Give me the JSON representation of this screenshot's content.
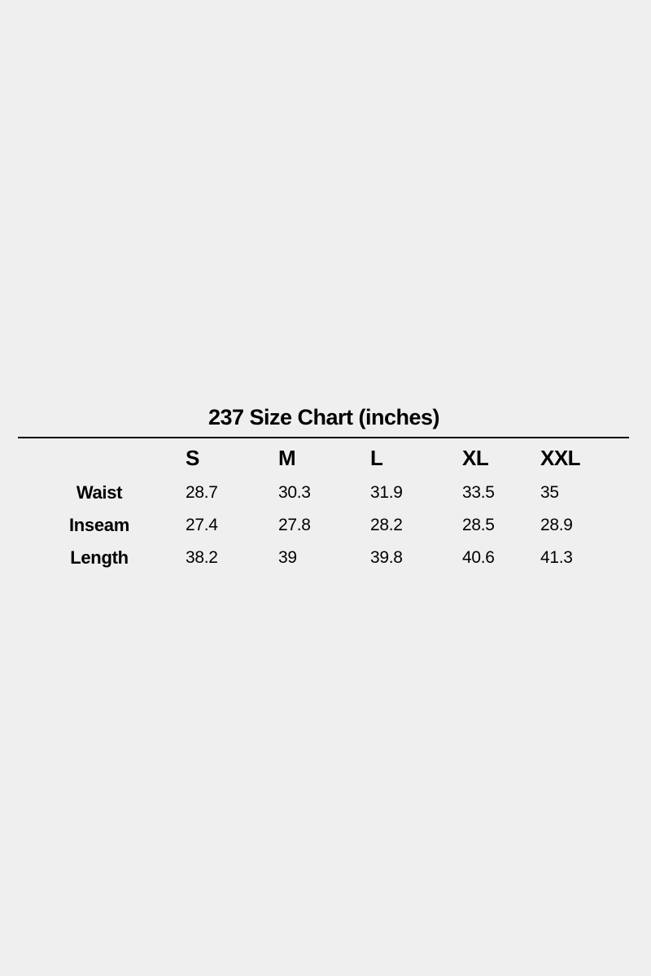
{
  "title": "237 Size Chart (inches)",
  "columns": [
    "S",
    "M",
    "L",
    "XL",
    "XXL"
  ],
  "rows": [
    {
      "label": "Waist",
      "values": [
        "28.7",
        "30.3",
        "31.9",
        "33.5",
        "35"
      ]
    },
    {
      "label": "Inseam",
      "values": [
        "27.4",
        "27.8",
        "28.2",
        "28.5",
        "28.9"
      ]
    },
    {
      "label": "Length",
      "values": [
        "38.2",
        "39",
        "39.8",
        "40.6",
        "41.3"
      ]
    }
  ]
}
